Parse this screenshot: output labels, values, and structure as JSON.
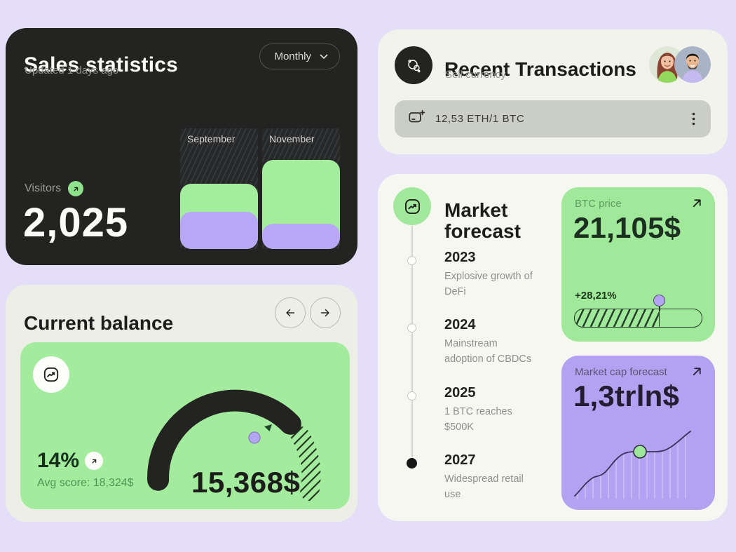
{
  "sales_statistics": {
    "title": "Sales statistics",
    "subtitle": "Updated 1 days ago",
    "period_selector": "Monthly",
    "visitors_label": "Visitors",
    "visitors_value": "2,025"
  },
  "current_balance": {
    "title": "Current balance",
    "percent": "14%",
    "avg_score": "Avg score: 18,324$",
    "balance_value": "15,368$"
  },
  "recent_transactions": {
    "title": "Recent Transactions",
    "subtitle": "Sell currency",
    "exchange_value": "12,53 ETH/1 BTC"
  },
  "market_forecast": {
    "title": "Market forecast",
    "timeline": [
      {
        "year": "2023",
        "description": "Explosive growth of DeFi"
      },
      {
        "year": "2024",
        "description": "Mainstream adoption of CBDCs"
      },
      {
        "year": "2025",
        "description": "1 BTC reaches $500K"
      },
      {
        "year": "2027",
        "description": "Widespread retail use"
      }
    ],
    "btc_price": {
      "label": "BTC price",
      "value": "21,105$",
      "change": "+28,21%"
    },
    "market_cap": {
      "label": "Market cap forecast",
      "value": "1,3trln$"
    }
  },
  "chart_data": [
    {
      "name": "sales_bars",
      "type": "bar",
      "categories": [
        "September",
        "November"
      ],
      "series": [
        {
          "name": "green",
          "values": [
            54,
            74
          ]
        },
        {
          "name": "purple",
          "values": [
            31,
            21
          ]
        }
      ],
      "ylabel": "",
      "unit": "percent of column height",
      "note": "hatched column background marks remaining range above each bar"
    },
    {
      "name": "balance_gauge",
      "type": "gauge",
      "percent": 14,
      "value": "15,368$",
      "avg_score": "18,324$",
      "filled_style": "solid dark arc",
      "remaining_style": "hatched arc segment"
    },
    {
      "name": "btc_progress",
      "type": "progress",
      "percent": 67,
      "label": "+28,21%",
      "marker": "purple dot at fill edge"
    },
    {
      "name": "market_cap_curve",
      "type": "line",
      "x": [
        0,
        6,
        14,
        20,
        24,
        34,
        44,
        52,
        60,
        68,
        74,
        82,
        92,
        100
      ],
      "y": [
        2,
        12,
        26,
        29,
        31,
        46,
        60,
        64,
        64,
        64,
        64,
        69,
        82,
        94
      ],
      "marker_x": 54,
      "marker": "green dot on plateau",
      "fill": "vertical stripe area under curve",
      "unit": "percent of chart height"
    }
  ],
  "colors": {
    "page_bg": "#e5def8",
    "dark_card": "#232322",
    "light_card": "#f2f3ed",
    "green_accent": "#a3eb9d",
    "purple_accent": "#b2a2f1",
    "gray_input": "#cbcec5",
    "muted_text": "#8f8f8d"
  }
}
